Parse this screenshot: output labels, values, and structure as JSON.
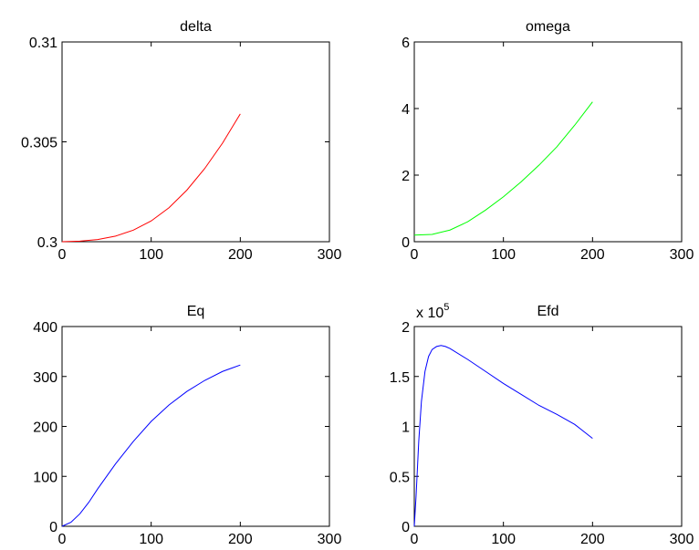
{
  "chart_data": [
    {
      "type": "line",
      "title": "delta",
      "xlim": [
        0,
        300
      ],
      "ylim": [
        0.3,
        0.31
      ],
      "xticks": [
        0,
        100,
        200,
        300
      ],
      "yticks": [
        0.3,
        0.305,
        0.31
      ],
      "xtick_labels": [
        "0",
        "100",
        "200",
        "300"
      ],
      "ytick_labels": [
        "0.3",
        "0.305",
        "0.31"
      ],
      "color": "#ff0000",
      "series": [
        {
          "x": [
            0,
            20,
            40,
            60,
            80,
            100,
            120,
            140,
            160,
            180,
            200
          ],
          "y": [
            0.3,
            0.30003,
            0.30011,
            0.30028,
            0.30058,
            0.30104,
            0.3017,
            0.30258,
            0.30366,
            0.30493,
            0.3064
          ]
        }
      ]
    },
    {
      "type": "line",
      "title": "omega",
      "xlim": [
        0,
        300
      ],
      "ylim": [
        0,
        6
      ],
      "xticks": [
        0,
        100,
        200,
        300
      ],
      "yticks": [
        0,
        2,
        4,
        6
      ],
      "xtick_labels": [
        "0",
        "100",
        "200",
        "300"
      ],
      "ytick_labels": [
        "0",
        "2",
        "4",
        "6"
      ],
      "color": "#00ff00",
      "series": [
        {
          "x": [
            0,
            20,
            40,
            60,
            80,
            100,
            120,
            140,
            160,
            180,
            200
          ],
          "y": [
            0.2,
            0.22,
            0.35,
            0.6,
            0.95,
            1.35,
            1.8,
            2.3,
            2.85,
            3.5,
            4.2
          ]
        }
      ]
    },
    {
      "type": "line",
      "title": "Eq",
      "xlim": [
        0,
        300
      ],
      "ylim": [
        0,
        400
      ],
      "xticks": [
        0,
        100,
        200,
        300
      ],
      "yticks": [
        0,
        100,
        200,
        300,
        400
      ],
      "xtick_labels": [
        "0",
        "100",
        "200",
        "300"
      ],
      "ytick_labels": [
        "0",
        "100",
        "200",
        "300",
        "400"
      ],
      "color": "#0000ff",
      "series": [
        {
          "x": [
            0,
            10,
            20,
            30,
            40,
            60,
            80,
            100,
            120,
            140,
            160,
            180,
            200
          ],
          "y": [
            0,
            8,
            25,
            48,
            75,
            125,
            170,
            210,
            243,
            270,
            292,
            310,
            323
          ]
        }
      ]
    },
    {
      "type": "line",
      "title": "Efd",
      "exponent_label": "x 10",
      "exponent_power": "5",
      "xlim": [
        0,
        300
      ],
      "ylim": [
        0,
        2
      ],
      "xticks": [
        0,
        100,
        200,
        300
      ],
      "yticks": [
        0,
        0.5,
        1,
        1.5,
        2
      ],
      "xtick_labels": [
        "0",
        "100",
        "200",
        "300"
      ],
      "ytick_labels": [
        "0",
        "0.5",
        "1",
        "1.5",
        "2"
      ],
      "color": "#0000ff",
      "series": [
        {
          "x": [
            0,
            2,
            5,
            8,
            12,
            16,
            20,
            25,
            30,
            35,
            40,
            60,
            80,
            100,
            120,
            140,
            160,
            180,
            200
          ],
          "y": [
            0,
            0.3,
            0.85,
            1.25,
            1.55,
            1.7,
            1.77,
            1.8,
            1.81,
            1.8,
            1.78,
            1.67,
            1.55,
            1.43,
            1.32,
            1.21,
            1.12,
            1.02,
            0.88
          ]
        }
      ]
    }
  ]
}
